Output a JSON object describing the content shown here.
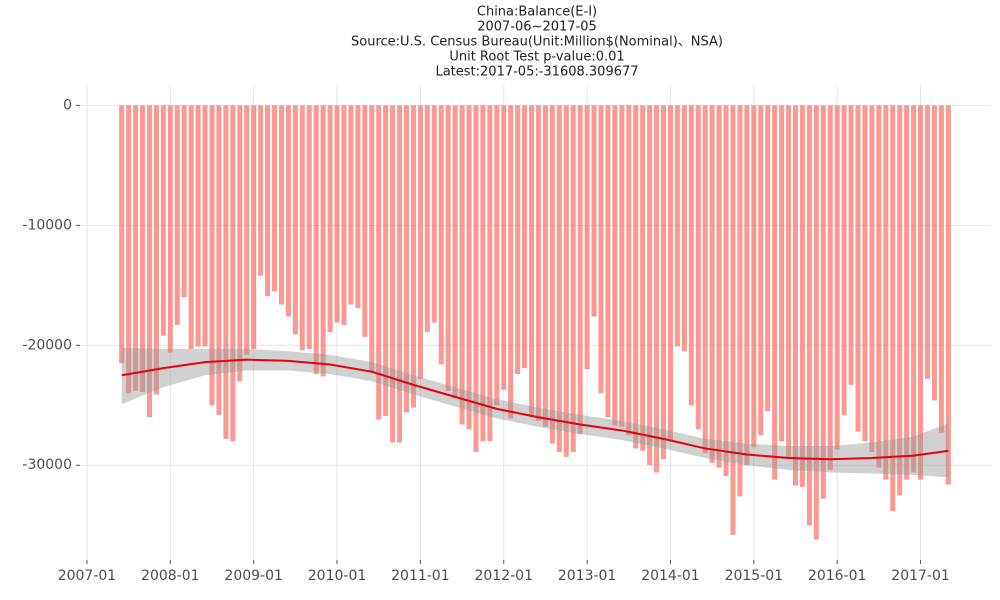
{
  "chart_data": {
    "type": "bar",
    "title": "China:Balance(E-I)",
    "subtitle": "2007-06~2017-05",
    "source": "Source:U.S. Census Bureau(Unit:Million$(Nominal)、NSA)",
    "test_note": "Unit Root Test p-value:0.01",
    "latest_note": "Latest:2017-05:-31608.309677",
    "color": "#f8766d",
    "x": [
      "2007-06",
      "2007-07",
      "2007-08",
      "2007-09",
      "2007-10",
      "2007-11",
      "2007-12",
      "2008-01",
      "2008-02",
      "2008-03",
      "2008-04",
      "2008-05",
      "2008-06",
      "2008-07",
      "2008-08",
      "2008-09",
      "2008-10",
      "2008-11",
      "2008-12",
      "2009-01",
      "2009-02",
      "2009-03",
      "2009-04",
      "2009-05",
      "2009-06",
      "2009-07",
      "2009-08",
      "2009-09",
      "2009-10",
      "2009-11",
      "2009-12",
      "2010-01",
      "2010-02",
      "2010-03",
      "2010-04",
      "2010-05",
      "2010-06",
      "2010-07",
      "2010-08",
      "2010-09",
      "2010-10",
      "2010-11",
      "2010-12",
      "2011-01",
      "2011-02",
      "2011-03",
      "2011-04",
      "2011-05",
      "2011-06",
      "2011-07",
      "2011-08",
      "2011-09",
      "2011-10",
      "2011-11",
      "2011-12",
      "2012-01",
      "2012-02",
      "2012-03",
      "2012-04",
      "2012-05",
      "2012-06",
      "2012-07",
      "2012-08",
      "2012-09",
      "2012-10",
      "2012-11",
      "2012-12",
      "2013-01",
      "2013-02",
      "2013-03",
      "2013-04",
      "2013-05",
      "2013-06",
      "2013-07",
      "2013-08",
      "2013-09",
      "2013-10",
      "2013-11",
      "2013-12",
      "2014-01",
      "2014-02",
      "2014-03",
      "2014-04",
      "2014-05",
      "2014-06",
      "2014-07",
      "2014-08",
      "2014-09",
      "2014-10",
      "2014-11",
      "2014-12",
      "2015-01",
      "2015-02",
      "2015-03",
      "2015-04",
      "2015-05",
      "2015-06",
      "2015-07",
      "2015-08",
      "2015-09",
      "2015-10",
      "2015-11",
      "2015-12",
      "2016-01",
      "2016-02",
      "2016-03",
      "2016-04",
      "2016-05",
      "2016-06",
      "2016-07",
      "2016-08",
      "2016-09",
      "2016-10",
      "2016-11",
      "2016-12",
      "2017-01",
      "2017-02",
      "2017-03",
      "2017-04",
      "2017-05"
    ],
    "values": [
      -21500,
      -24000,
      -23800,
      -23900,
      -26000,
      -24100,
      -19200,
      -20600,
      -18300,
      -16000,
      -20300,
      -20100,
      -20100,
      -25000,
      -25800,
      -27800,
      -28000,
      -23000,
      -20800,
      -20300,
      -14200,
      -15900,
      -15500,
      -16600,
      -17600,
      -19100,
      -20400,
      -20300,
      -22400,
      -22600,
      -18900,
      -18100,
      -18300,
      -16600,
      -16900,
      -19300,
      -22300,
      -26200,
      -25900,
      -28100,
      -28100,
      -25600,
      -25200,
      -22800,
      -18900,
      -18100,
      -21600,
      -23800,
      -24400,
      -26600,
      -27000,
      -28900,
      -28000,
      -28000,
      -25000,
      -23700,
      -26100,
      -22400,
      -21900,
      -26000,
      -26300,
      -26800,
      -28200,
      -28900,
      -29300,
      -28900,
      -27400,
      -22000,
      -17600,
      -24000,
      -26000,
      -26700,
      -26800,
      -27500,
      -28600,
      -28800,
      -30000,
      -30600,
      -29500,
      -28000,
      -20100,
      -20500,
      -25000,
      -27000,
      -29000,
      -29800,
      -30200,
      -30900,
      -35800,
      -32600,
      -30000,
      -28500,
      -27500,
      -25500,
      -31200,
      -28000,
      -29400,
      -31700,
      -31800,
      -35000,
      -36200,
      -32800,
      -30400,
      -28700,
      -25800,
      -23300,
      -27200,
      -28000,
      -28900,
      -30200,
      -31200,
      -33800,
      -32500,
      -31200,
      -30600,
      -31200,
      -22800,
      -24600,
      -27300,
      -31608.309677
    ],
    "trend": {
      "color": "#e8000b",
      "band_color": "#999999",
      "x": [
        "2007-06",
        "2007-12",
        "2008-06",
        "2008-12",
        "2009-06",
        "2009-12",
        "2010-06",
        "2010-12",
        "2011-06",
        "2011-12",
        "2012-06",
        "2012-12",
        "2013-06",
        "2013-12",
        "2014-06",
        "2014-12",
        "2015-06",
        "2015-12",
        "2016-06",
        "2016-12",
        "2017-05"
      ],
      "values": [
        -22500,
        -21900,
        -21400,
        -21200,
        -21300,
        -21600,
        -22200,
        -23300,
        -24300,
        -25300,
        -26000,
        -26600,
        -27100,
        -27800,
        -28600,
        -29100,
        -29400,
        -29500,
        -29400,
        -29200,
        -28800
      ],
      "upper": [
        -20200,
        -20300,
        -20300,
        -20300,
        -20500,
        -20800,
        -21400,
        -22500,
        -23500,
        -24500,
        -25200,
        -25800,
        -26300,
        -27000,
        -27800,
        -28200,
        -28400,
        -28400,
        -28100,
        -27600,
        -26500
      ],
      "lower": [
        -24900,
        -23500,
        -22500,
        -22100,
        -22100,
        -22400,
        -23000,
        -24100,
        -25100,
        -26100,
        -26800,
        -27400,
        -27900,
        -28600,
        -29400,
        -30000,
        -30400,
        -30600,
        -30700,
        -30800,
        -31000
      ]
    },
    "xlim": [
      "2006-12",
      "2017-11"
    ],
    "xticks": [
      "2007-01",
      "2008-01",
      "2009-01",
      "2010-01",
      "2011-01",
      "2012-01",
      "2013-01",
      "2014-01",
      "2015-01",
      "2016-01",
      "2017-01"
    ],
    "ylim": [
      -37900,
      1700
    ],
    "yticks": [
      0,
      -10000,
      -20000,
      -30000
    ],
    "grid": true
  }
}
